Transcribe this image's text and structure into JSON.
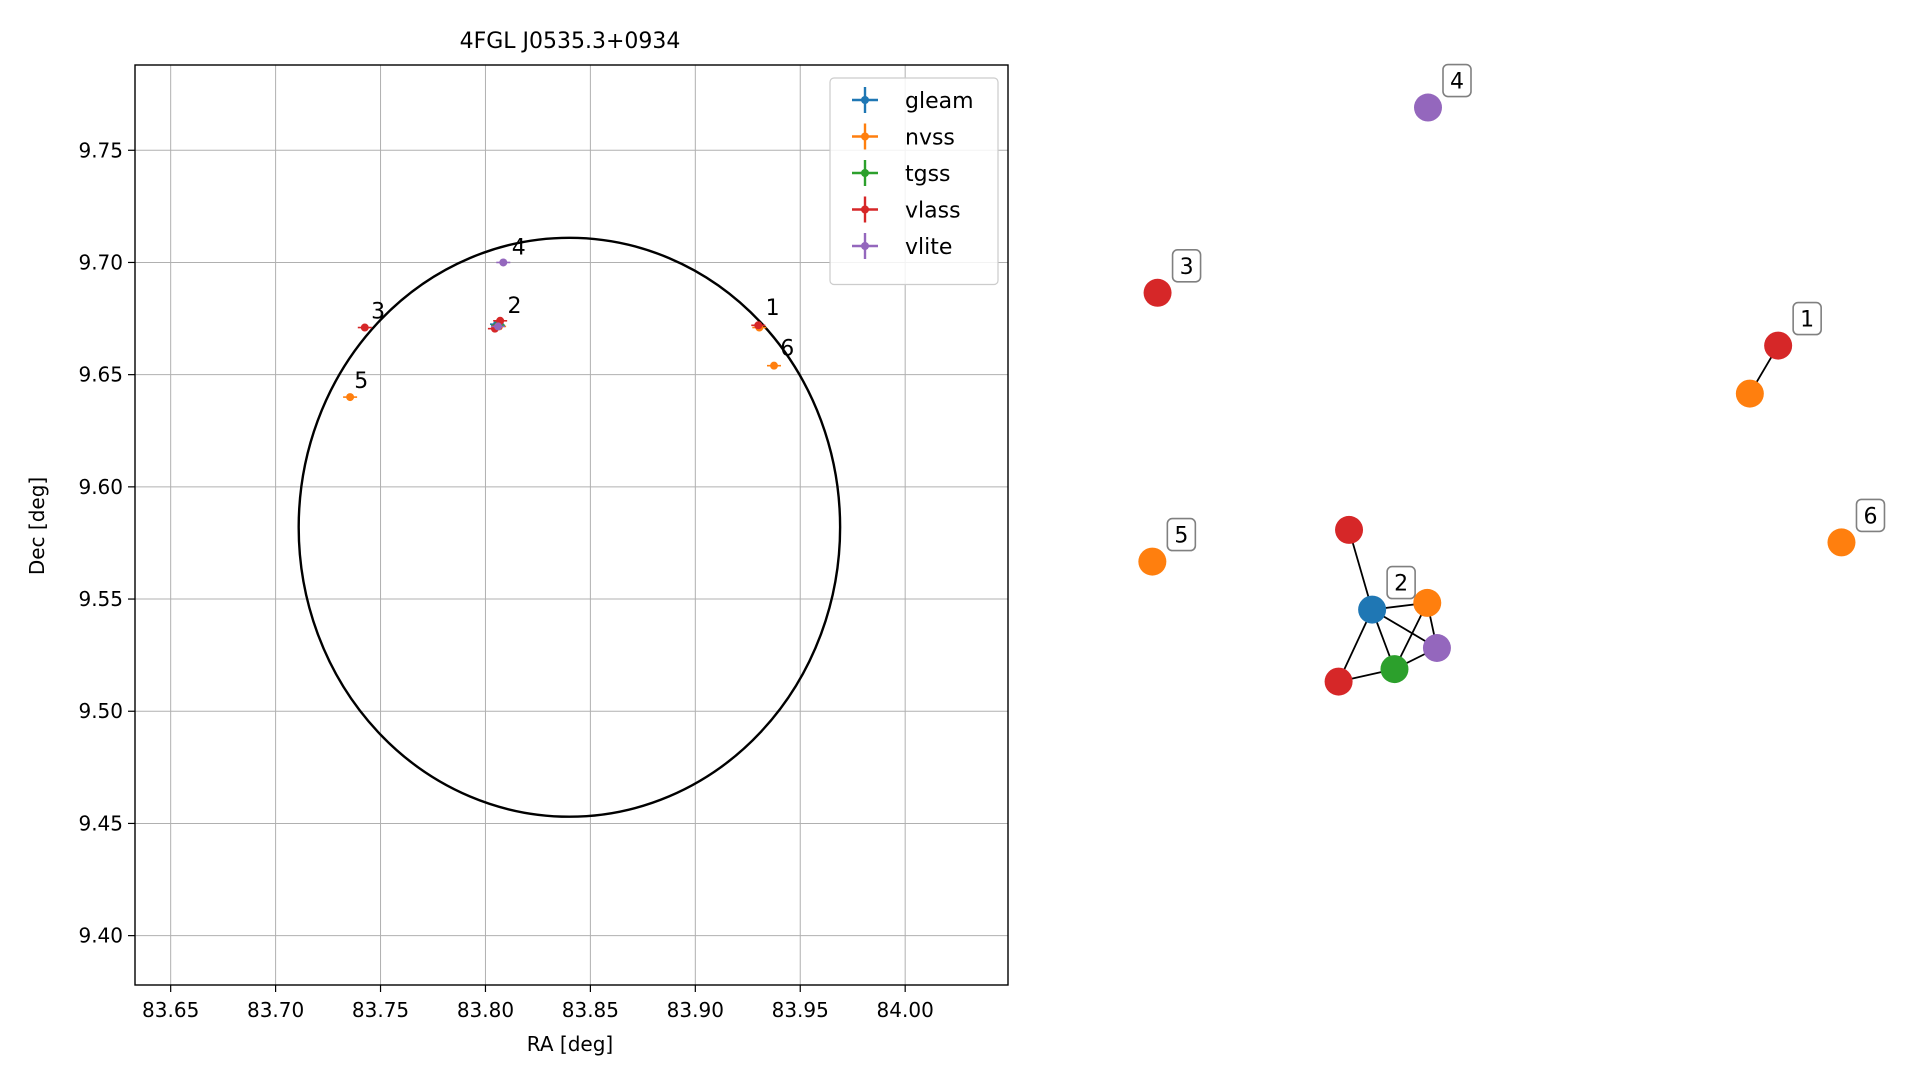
{
  "chart_data": [
    {
      "type": "scatter",
      "title": "4FGL J0535.3+0934",
      "xlabel": "RA [deg]",
      "ylabel": "Dec [deg]",
      "xlim": [
        83.633,
        84.049
      ],
      "ylim": [
        9.378,
        9.788
      ],
      "xticks": [
        83.65,
        83.7,
        83.75,
        83.8,
        83.85,
        83.9,
        83.95,
        84.0
      ],
      "xtick_labels": [
        "83.65",
        "83.70",
        "83.75",
        "83.80",
        "83.85",
        "83.90",
        "83.95",
        "84.00"
      ],
      "yticks": [
        9.4,
        9.45,
        9.5,
        9.55,
        9.6,
        9.65,
        9.7,
        9.75
      ],
      "ytick_labels": [
        "9.40",
        "9.45",
        "9.50",
        "9.55",
        "9.60",
        "9.65",
        "9.70",
        "9.75"
      ],
      "grid": true,
      "legend_position": "top-right",
      "circle": {
        "center": [
          83.84,
          9.582
        ],
        "radius": 0.129
      },
      "series": [
        {
          "name": "gleam",
          "color": "#1f77b4",
          "points": [
            [
              83.8055,
              9.6725
            ]
          ]
        },
        {
          "name": "nvss",
          "color": "#ff7f0e",
          "points": [
            [
              83.7355,
              9.64
            ],
            [
              83.8065,
              9.6715
            ],
            [
              83.9305,
              9.671
            ],
            [
              83.9375,
              9.654
            ]
          ]
        },
        {
          "name": "tgss",
          "color": "#2ca02c",
          "points": [
            [
              83.806,
              9.672
            ]
          ]
        },
        {
          "name": "vlass",
          "color": "#d62728",
          "points": [
            [
              83.7425,
              9.671
            ],
            [
              83.807,
              9.674
            ],
            [
              83.8045,
              9.6705
            ],
            [
              83.93,
              9.672
            ]
          ]
        },
        {
          "name": "vlite",
          "color": "#9467bd",
          "points": [
            [
              83.8085,
              9.7
            ],
            [
              83.806,
              9.6715
            ]
          ]
        }
      ],
      "annotations": [
        {
          "text": "1",
          "at": [
            83.9335,
            9.6765
          ]
        },
        {
          "text": "2",
          "at": [
            83.8105,
            9.6775
          ]
        },
        {
          "text": "3",
          "at": [
            83.7455,
            9.675
          ]
        },
        {
          "text": "4",
          "at": [
            83.8125,
            9.7035
          ]
        },
        {
          "text": "5",
          "at": [
            83.7375,
            9.644
          ]
        },
        {
          "text": "6",
          "at": [
            83.9405,
            9.6585
          ]
        }
      ]
    },
    {
      "type": "network",
      "nodes": [
        {
          "id": "n1",
          "color": "#d62728",
          "pos": [
            0.87,
            0.36
          ],
          "label": "1"
        },
        {
          "id": "n1b",
          "color": "#ff7f0e",
          "pos": [
            0.832,
            0.41
          ],
          "label": ""
        },
        {
          "id": "n2",
          "color": "#1f77b4",
          "pos": [
            0.325,
            0.635
          ],
          "label": "2"
        },
        {
          "id": "n2a",
          "color": "#d62728",
          "pos": [
            0.294,
            0.552
          ],
          "label": ""
        },
        {
          "id": "n2b",
          "color": "#ff7f0e",
          "pos": [
            0.399,
            0.628
          ],
          "label": ""
        },
        {
          "id": "n2c",
          "color": "#9467bd",
          "pos": [
            0.412,
            0.675
          ],
          "label": ""
        },
        {
          "id": "n2d",
          "color": "#2ca02c",
          "pos": [
            0.355,
            0.697
          ],
          "label": ""
        },
        {
          "id": "n2e",
          "color": "#d62728",
          "pos": [
            0.28,
            0.71
          ],
          "label": ""
        },
        {
          "id": "n3",
          "color": "#d62728",
          "pos": [
            0.037,
            0.305
          ],
          "label": "3"
        },
        {
          "id": "n4",
          "color": "#9467bd",
          "pos": [
            0.4,
            0.112
          ],
          "label": "4"
        },
        {
          "id": "n5",
          "color": "#ff7f0e",
          "pos": [
            0.03,
            0.585
          ],
          "label": "5"
        },
        {
          "id": "n6",
          "color": "#ff7f0e",
          "pos": [
            0.955,
            0.565
          ],
          "label": "6"
        }
      ],
      "edges": [
        [
          "n1",
          "n1b"
        ],
        [
          "n2a",
          "n2"
        ],
        [
          "n2",
          "n2b"
        ],
        [
          "n2",
          "n2c"
        ],
        [
          "n2",
          "n2d"
        ],
        [
          "n2",
          "n2e"
        ],
        [
          "n2b",
          "n2d"
        ],
        [
          "n2b",
          "n2c"
        ],
        [
          "n2d",
          "n2c"
        ],
        [
          "n2d",
          "n2e"
        ]
      ]
    }
  ]
}
